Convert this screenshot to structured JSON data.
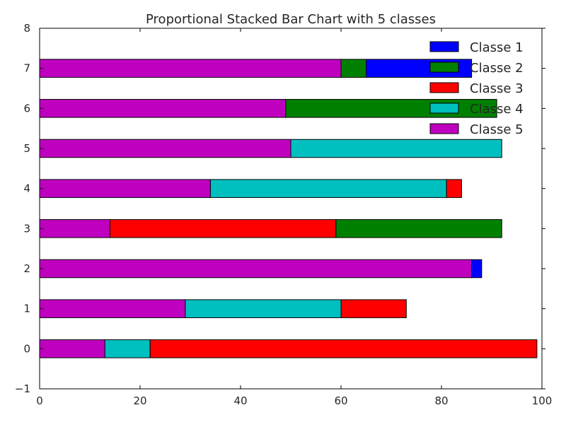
{
  "chart_data": {
    "type": "bar",
    "orientation": "horizontal",
    "stacked": true,
    "title": "Proportional Stacked Bar Chart with 5 classes",
    "xlabel": "",
    "ylabel": "",
    "xlim": [
      0,
      100
    ],
    "ylim": [
      -1,
      8
    ],
    "xticks": [
      "0",
      "20",
      "40",
      "60",
      "80",
      "100"
    ],
    "yticks": [
      "−1",
      "0",
      "1",
      "2",
      "3",
      "4",
      "5",
      "6",
      "7",
      "8"
    ],
    "categories": [
      0,
      1,
      2,
      3,
      4,
      5,
      6,
      7
    ],
    "grid": false,
    "legend_position": "top-right",
    "series": [
      {
        "name": "Classe 5",
        "color": "#bf00bf",
        "values": [
          13,
          29,
          86,
          14,
          34,
          50,
          49,
          60
        ]
      },
      {
        "name": "Classe 4",
        "color": "#00bfbf",
        "values": [
          9,
          31,
          0,
          0,
          47,
          42,
          0,
          0
        ]
      },
      {
        "name": "Classe 3",
        "color": "#ff0000",
        "values": [
          77,
          13,
          0,
          45,
          3,
          0,
          0,
          0
        ]
      },
      {
        "name": "Classe 2",
        "color": "#008000",
        "values": [
          0,
          0,
          0,
          33,
          0,
          0,
          42,
          5
        ]
      },
      {
        "name": "Classe 1",
        "color": "#0000ff",
        "values": [
          0,
          0,
          2,
          0,
          0,
          0,
          0,
          21
        ]
      }
    ],
    "legend_order": [
      "Classe 1",
      "Classe 2",
      "Classe 3",
      "Classe 4",
      "Classe 5"
    ]
  }
}
